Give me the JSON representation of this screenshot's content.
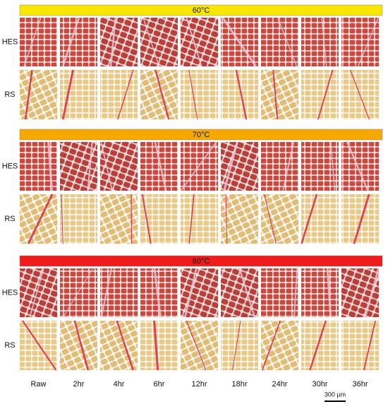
{
  "panels": [
    {
      "title": "60°C",
      "rows": [
        "HES",
        "RS"
      ]
    },
    {
      "title": "70°C",
      "rows": [
        "HES",
        "RS"
      ]
    },
    {
      "title": "80°C",
      "rows": [
        "HES",
        "RS"
      ]
    }
  ],
  "columns": [
    "Raw",
    "2hr",
    "4hr",
    "6hr",
    "12hr",
    "18hr",
    "24hr",
    "30hr",
    "36hr"
  ],
  "scale_bar": "300 µm"
}
